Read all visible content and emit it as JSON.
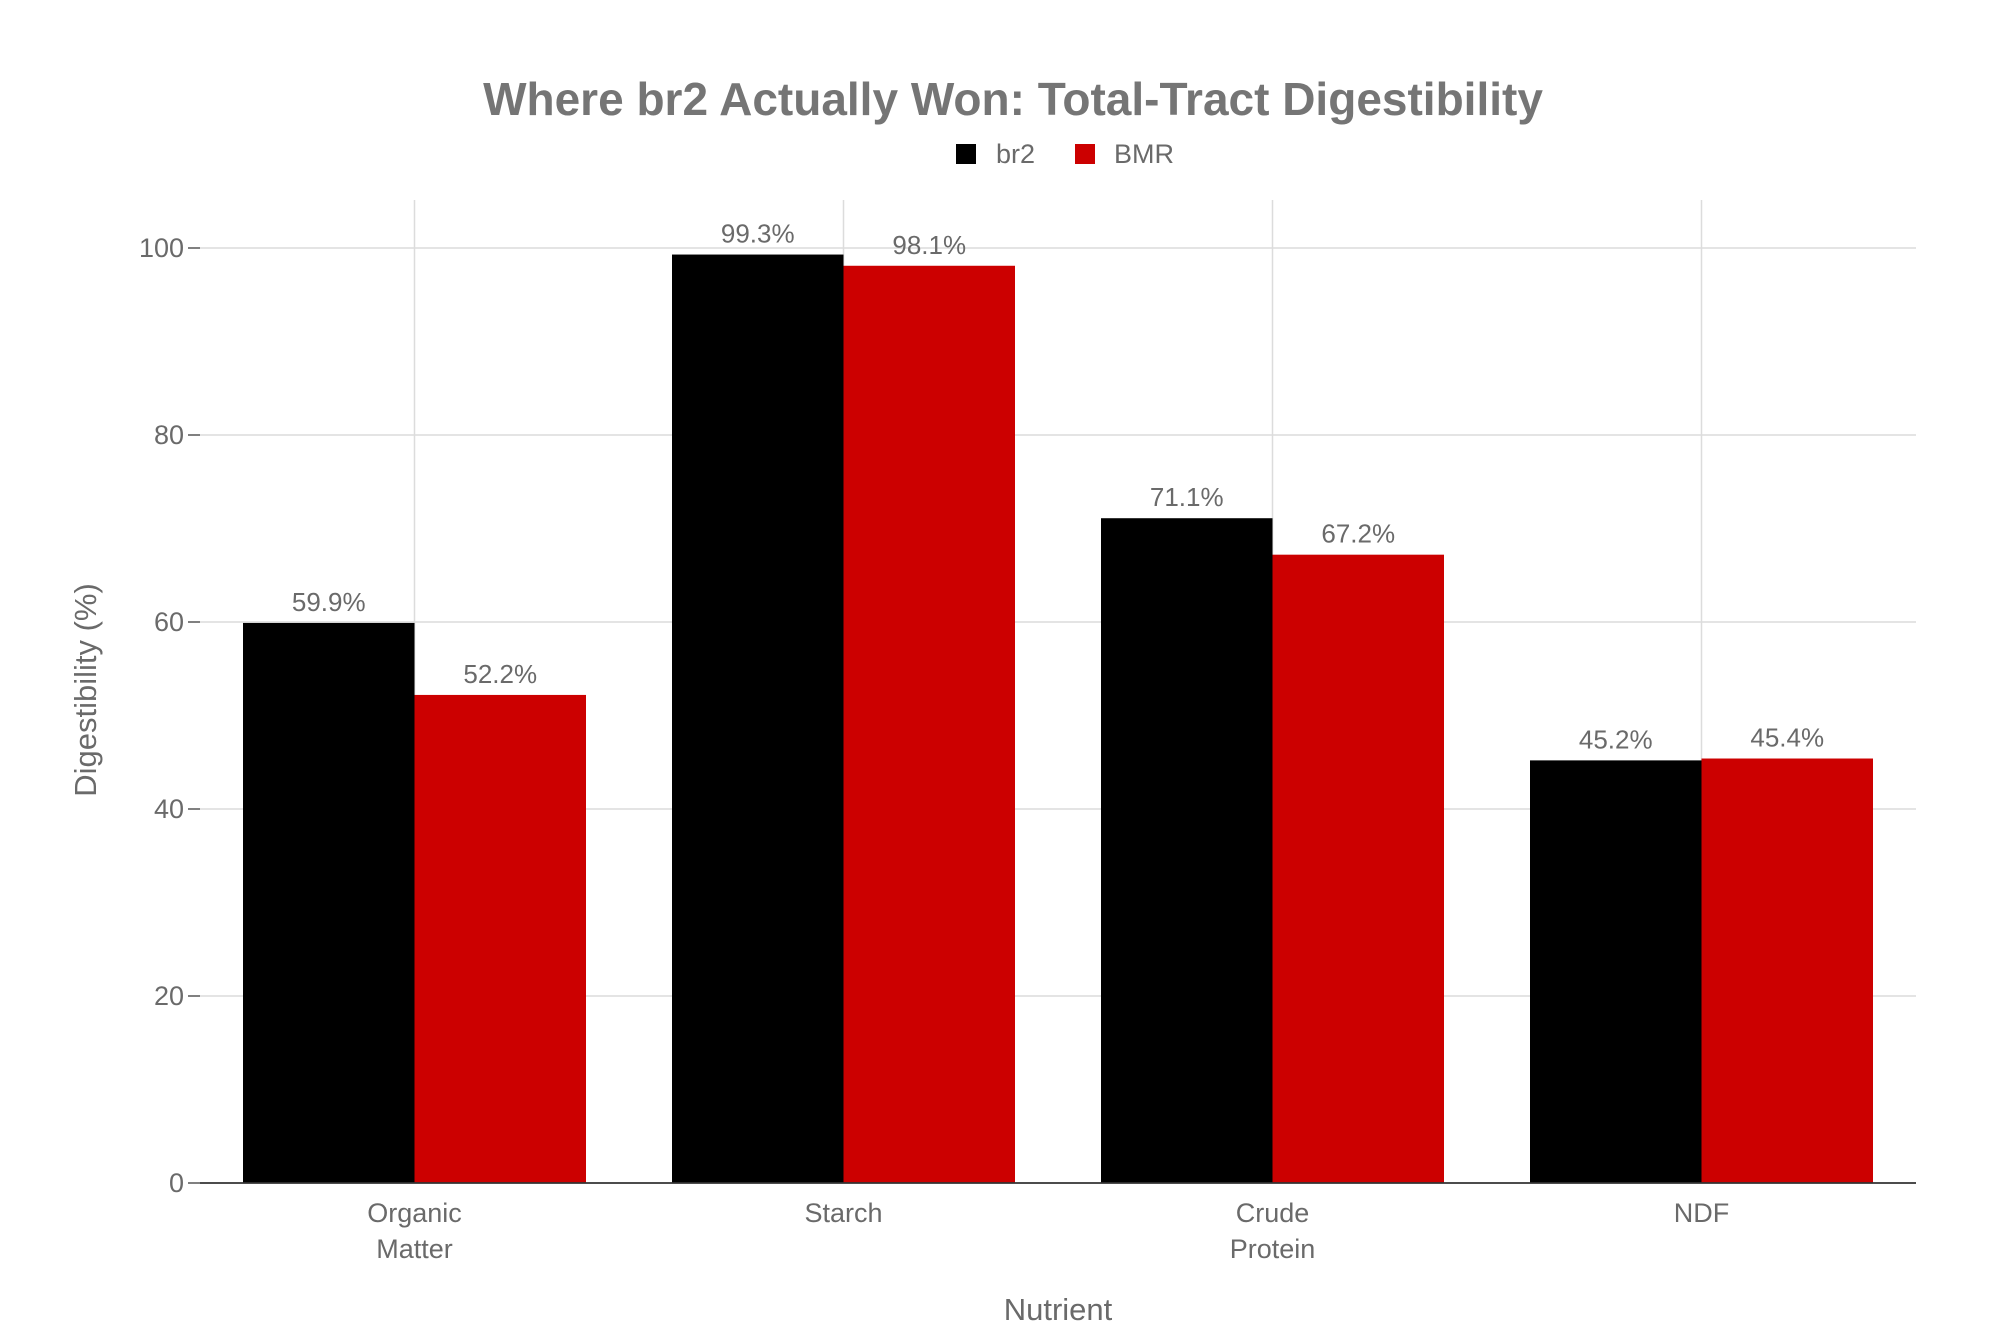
{
  "chart_data": {
    "type": "bar",
    "title": "Where br2 Actually Won: Total-Tract Digestibility",
    "xlabel": "Nutrient",
    "ylabel": "Digestibility (%)",
    "ylim": [
      0,
      105
    ],
    "yticks": [
      0,
      20,
      40,
      60,
      80,
      100
    ],
    "grid": true,
    "legend_position": "top-center",
    "categories": [
      [
        "Organic",
        "Matter"
      ],
      [
        "Starch"
      ],
      [
        "Crude",
        "Protein"
      ],
      [
        "NDF"
      ]
    ],
    "series": [
      {
        "name": "br2",
        "color": "#000000",
        "values": [
          59.9,
          99.3,
          71.1,
          45.2
        ],
        "labels": [
          "59.9%",
          "99.3%",
          "71.1%",
          "45.2%"
        ]
      },
      {
        "name": "BMR",
        "color": "#cc0000",
        "values": [
          52.2,
          98.1,
          67.2,
          45.4
        ],
        "labels": [
          "52.2%",
          "98.1%",
          "67.2%",
          "45.4%"
        ]
      }
    ]
  }
}
